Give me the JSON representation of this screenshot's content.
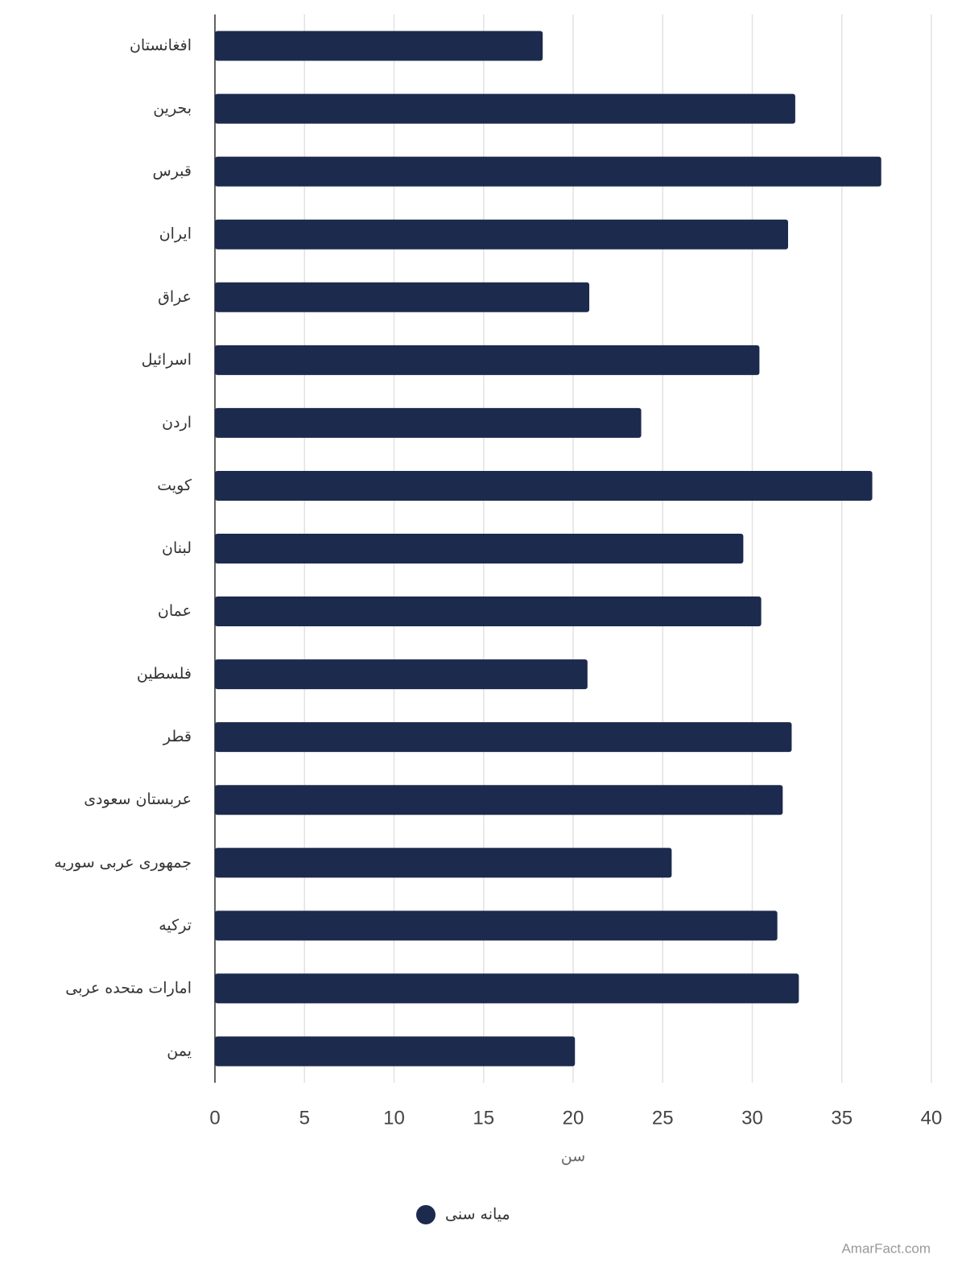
{
  "chart_data": {
    "type": "bar",
    "orientation": "horizontal",
    "categories": [
      "افغانستان",
      "بحرین",
      "قبرس",
      "ایران",
      "عراق",
      "اسرائیل",
      "اردن",
      "کویت",
      "لبنان",
      "عمان",
      "فلسطین",
      "قطر",
      "عربستان سعودی",
      "جمهوری عربی سوریه",
      "ترکیه",
      "امارات متحده عربی",
      "یمن"
    ],
    "series": [
      {
        "name": "میانه سنی",
        "color": "#1c2a4d",
        "values": [
          18.3,
          32.4,
          37.2,
          32.0,
          20.9,
          30.4,
          23.8,
          36.7,
          29.5,
          30.5,
          20.8,
          32.2,
          31.7,
          25.5,
          31.4,
          32.6,
          20.1
        ]
      }
    ],
    "x_label": "سن",
    "xlim": [
      0,
      40
    ],
    "xticks": [
      0,
      5,
      10,
      15,
      20,
      25,
      30,
      35,
      40
    ],
    "grid": true,
    "legend": "bottom",
    "watermark": "AmarFact.com"
  }
}
